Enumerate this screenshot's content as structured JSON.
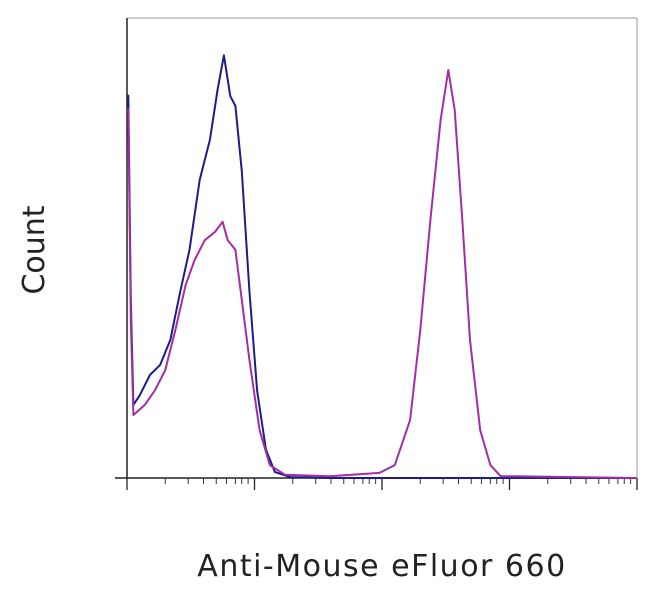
{
  "chart_data": {
    "type": "line",
    "x_label": "Anti-Mouse eFluor 660",
    "y_label": "Count",
    "xlim": [
      0,
      4
    ],
    "ylim": [
      0,
      100
    ],
    "xticks": [
      0,
      1,
      2,
      3,
      4
    ],
    "xminorticks": [
      0.3,
      0.48,
      0.6,
      0.7,
      0.78,
      0.85,
      0.9,
      0.95,
      1.3,
      1.48,
      1.6,
      1.7,
      1.78,
      1.85,
      1.9,
      1.95,
      2.3,
      2.48,
      2.6,
      2.7,
      2.78,
      2.85,
      2.9,
      2.95,
      3.3,
      3.48,
      3.6,
      3.7,
      3.78,
      3.85,
      3.9,
      3.95
    ],
    "series": [
      {
        "color": "#1c1c8a",
        "x": [
          0.01,
          0.03,
          0.05,
          0.1,
          0.18,
          0.26,
          0.34,
          0.42,
          0.49,
          0.57,
          0.65,
          0.71,
          0.76,
          0.81,
          0.85,
          0.9,
          0.96,
          1.02,
          1.09,
          1.16,
          1.28,
          1.59,
          4.0
        ],
        "values": [
          83.3,
          38.7,
          15.9,
          18.0,
          22.4,
          24.6,
          30.0,
          40.9,
          49.6,
          64.8,
          73.5,
          84.3,
          91.9,
          83.0,
          80.9,
          66.7,
          40.7,
          19.0,
          6.1,
          1.3,
          0.2,
          0,
          0
        ]
      },
      {
        "color": "#a22ea6",
        "x": [
          0.01,
          0.03,
          0.05,
          0.14,
          0.22,
          0.3,
          0.38,
          0.46,
          0.53,
          0.61,
          0.69,
          0.75,
          0.79,
          0.85,
          0.9,
          0.96,
          1.04,
          1.12,
          1.24,
          1.59,
          1.98,
          2.1,
          2.22,
          2.3,
          2.38,
          2.46,
          2.52,
          2.57,
          2.63,
          2.69,
          2.77,
          2.85,
          2.93,
          3.04,
          4.0
        ],
        "values": [
          80.4,
          34.3,
          13.7,
          15.9,
          19.1,
          23.5,
          32.2,
          42.0,
          47.4,
          51.7,
          53.5,
          55.7,
          51.7,
          49.6,
          38.7,
          25.7,
          10.4,
          2.8,
          0.7,
          0.4,
          1.1,
          2.8,
          12.6,
          32.2,
          56.1,
          77.8,
          88.7,
          80.0,
          56.1,
          30.0,
          10.4,
          2.8,
          0.4,
          0.4,
          0
        ]
      }
    ]
  }
}
